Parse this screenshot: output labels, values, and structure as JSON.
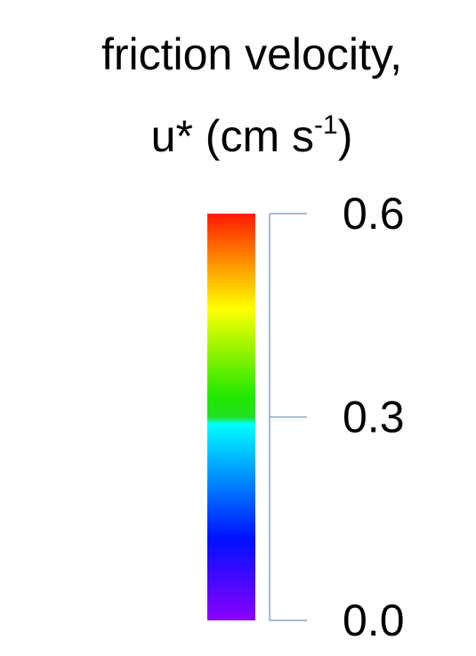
{
  "chart_data": {
    "type": "colorbar",
    "title": "friction velocity,",
    "subtitle_parts": [
      "u* (cm s",
      "-1",
      ")"
    ],
    "ylim": [
      0,
      0.6
    ],
    "yticks": [
      {
        "value": 0,
        "label": "0.0"
      },
      0.3,
      0.6
    ],
    "colormap": [
      {
        "value": 0,
        "color": "#8b00ff"
      },
      {
        "value": 0.12,
        "color": "#0010ff"
      },
      {
        "value": 0.29,
        "color": "#00ffff"
      },
      {
        "value": 0.3,
        "color": "#22e020"
      },
      {
        "value": 0.33,
        "color": "#20e800"
      },
      {
        "value": 0.46,
        "color": "#ffff00"
      },
      {
        "value": 0.6,
        "color": "#ff1a00"
      }
    ],
    "axis_color": "#8aa2cc"
  }
}
